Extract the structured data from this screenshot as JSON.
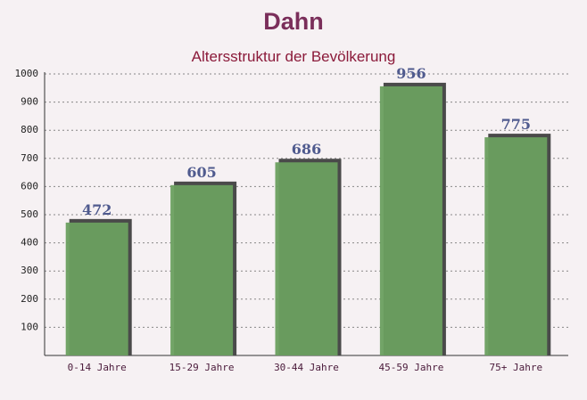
{
  "chart_data": {
    "type": "bar",
    "title": "Dahn",
    "subtitle": "Altersstruktur der Bevölkerung",
    "categories": [
      "0-14 Jahre",
      "15-29 Jahre",
      "30-44 Jahre",
      "45-59 Jahre",
      "75+ Jahre"
    ],
    "values": [
      472,
      605,
      686,
      956,
      775
    ],
    "color": "#6a9f5f",
    "ylim": [
      0,
      1000
    ],
    "yticks": [
      100,
      200,
      300,
      400,
      500,
      600,
      700,
      800,
      900,
      1000
    ],
    "grid": true
  }
}
